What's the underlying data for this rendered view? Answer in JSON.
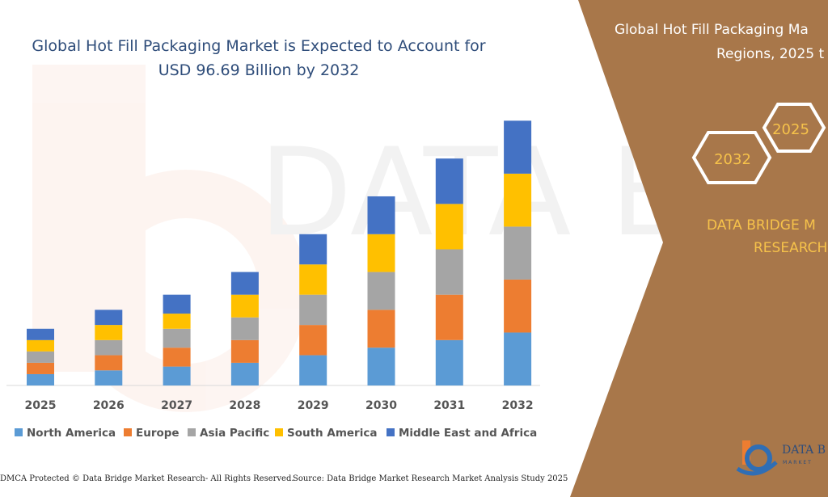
{
  "title_line1": "Global Hot Fill Packaging Market is Expected to Account for",
  "title_line2": "USD 96.69 Billion by 2032",
  "right_panel": {
    "title_line1": "Global Hot Fill Packaging Ma",
    "title_line2": "Regions, 2025 t",
    "hex_labels": [
      "2025",
      "2032"
    ],
    "brand_line1": "DATA BRIDGE M",
    "brand_line2": "RESEARCH",
    "logo_text": "DATA B",
    "logo_sub": "MARKET"
  },
  "footer": {
    "left": "DMCA Protected © Data Bridge Market Research- All Rights Reserved.",
    "right": "Source: Data Bridge Market Research Market Analysis Study 2025"
  },
  "colors": {
    "panel": "#a8774a",
    "panel_text": "#ffffff",
    "hex_stroke": "#ffffff",
    "brand_text": "#f6c24a",
    "title": "#2f4d7a"
  },
  "chart_data": {
    "type": "bar",
    "stacked": true,
    "categories": [
      "2025",
      "2026",
      "2027",
      "2028",
      "2029",
      "2030",
      "2031",
      "2032"
    ],
    "series": [
      {
        "name": "North America",
        "color": "#5b9bd5",
        "values": [
          3,
          4,
          5,
          6,
          8,
          10,
          12,
          14
        ]
      },
      {
        "name": "Europe",
        "color": "#ed7d31",
        "values": [
          3,
          4,
          5,
          6,
          8,
          10,
          12,
          14
        ]
      },
      {
        "name": "Asia Pacific",
        "color": "#a5a5a5",
        "values": [
          3,
          4,
          5,
          6,
          8,
          10,
          12,
          14
        ]
      },
      {
        "name": "South America",
        "color": "#ffc000",
        "values": [
          3,
          4,
          4,
          6,
          8,
          10,
          12,
          14
        ]
      },
      {
        "name": "Middle East and Africa",
        "color": "#4472c4",
        "values": [
          3,
          4,
          5,
          6,
          8,
          10,
          12,
          14
        ]
      }
    ],
    "ylim": [
      0,
      72
    ],
    "grid": false,
    "legend": "bottom"
  }
}
